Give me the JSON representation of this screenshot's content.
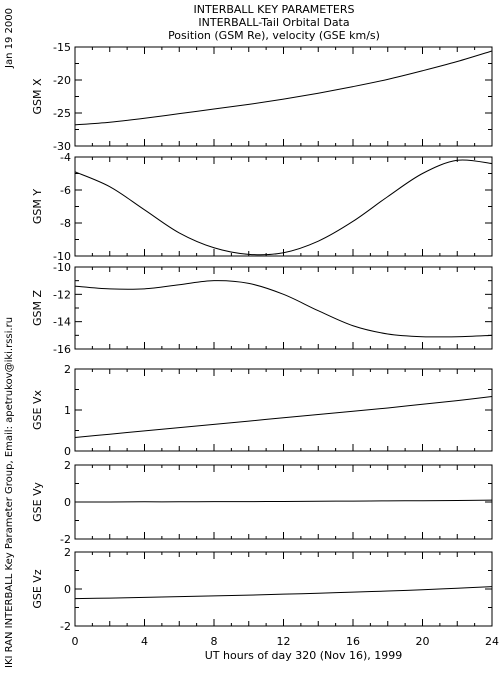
{
  "header": {
    "title": "INTERBALL KEY PARAMETERS",
    "subtitle": "INTERBALL-Tail Orbital Data",
    "description": "Position (GSM Re), velocity (GSE km/s)"
  },
  "side_labels": {
    "date": "Jan 19 2000",
    "credit": "IKI RAN INTERBALL Key Parameter Group, Email: apetrukov@iki.rssi.ru"
  },
  "chart_data": {
    "type": "line",
    "xlabel": "UT hours of day 320 (Nov 16), 1999",
    "xlim": [
      0,
      24
    ],
    "xticks": [
      0,
      4,
      8,
      12,
      16,
      20,
      24
    ],
    "x": [
      0,
      2,
      4,
      6,
      8,
      10,
      12,
      14,
      16,
      18,
      20,
      22,
      24
    ],
    "panels": [
      {
        "ylabel": "GSM X",
        "ylim": [
          -30,
          -15
        ],
        "yticks": [
          -30,
          -25,
          -20,
          -15
        ],
        "values": [
          -26.8,
          -26.4,
          -25.8,
          -25.1,
          -24.4,
          -23.7,
          -22.9,
          -22.0,
          -21.0,
          -19.9,
          -18.6,
          -17.2,
          -15.6
        ]
      },
      {
        "ylabel": "GSM Y",
        "ylim": [
          -10,
          -4
        ],
        "yticks": [
          -10,
          -8,
          -6,
          -4
        ],
        "values": [
          -4.9,
          -5.8,
          -7.2,
          -8.6,
          -9.5,
          -9.9,
          -9.8,
          -9.1,
          -7.9,
          -6.4,
          -5.0,
          -4.2,
          -4.4
        ]
      },
      {
        "ylabel": "GSM Z",
        "ylim": [
          -16,
          -10
        ],
        "yticks": [
          -16,
          -14,
          -12,
          -10
        ],
        "values": [
          -11.4,
          -11.6,
          -11.6,
          -11.3,
          -11.0,
          -11.2,
          -12.0,
          -13.2,
          -14.3,
          -14.9,
          -15.1,
          -15.1,
          -15.0
        ]
      },
      {
        "ylabel": "GSE Vx",
        "ylim": [
          0,
          2
        ],
        "yticks": [
          0,
          1,
          2
        ],
        "values": [
          0.33,
          0.41,
          0.49,
          0.57,
          0.65,
          0.73,
          0.81,
          0.89,
          0.97,
          1.05,
          1.14,
          1.23,
          1.33
        ]
      },
      {
        "ylabel": "GSE Vy",
        "ylim": [
          -2,
          2
        ],
        "yticks": [
          -2,
          0,
          2
        ],
        "values": [
          0.0,
          0.0,
          0.01,
          0.01,
          0.02,
          0.02,
          0.03,
          0.04,
          0.05,
          0.06,
          0.07,
          0.08,
          0.1
        ]
      },
      {
        "ylabel": "GSE Vz",
        "ylim": [
          -2,
          2
        ],
        "yticks": [
          -2,
          0,
          2
        ],
        "values": [
          -0.52,
          -0.49,
          -0.45,
          -0.41,
          -0.37,
          -0.33,
          -0.28,
          -0.23,
          -0.17,
          -0.11,
          -0.04,
          0.04,
          0.13
        ]
      }
    ]
  }
}
